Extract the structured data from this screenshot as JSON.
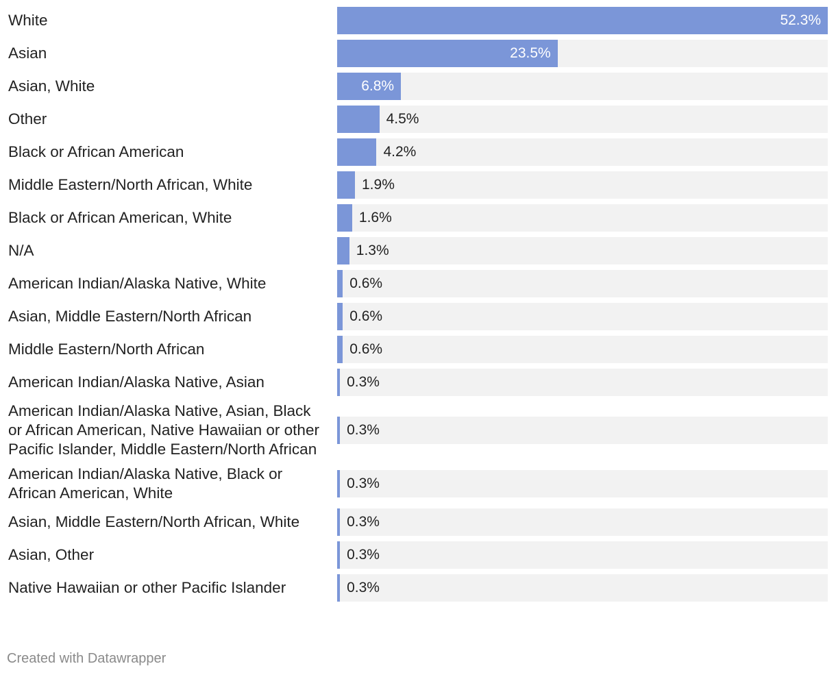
{
  "chart_data": {
    "type": "bar",
    "orientation": "horizontal",
    "categories": [
      "White",
      "Asian",
      "Asian, White",
      "Other",
      "Black or African American",
      "Middle Eastern/North African, White",
      "Black or African American, White",
      "N/A",
      "American Indian/Alaska Native, White",
      "Asian, Middle Eastern/North African",
      "Middle Eastern/North African",
      "American Indian/Alaska Native, Asian",
      "American Indian/Alaska Native, Asian, Black or African American, Native Hawaiian or other Pacific Islander, Middle Eastern/North African",
      "American Indian/Alaska Native, Black or African American, White",
      "Asian, Middle Eastern/North African, White",
      "Asian, Other",
      "Native Hawaiian or other Pacific Islander"
    ],
    "values": [
      52.3,
      23.5,
      6.8,
      4.5,
      4.2,
      1.9,
      1.6,
      1.3,
      0.6,
      0.6,
      0.6,
      0.3,
      0.3,
      0.3,
      0.3,
      0.3,
      0.3
    ],
    "value_labels": [
      "52.3%",
      "23.5%",
      "6.8%",
      "4.5%",
      "4.2%",
      "1.9%",
      "1.6%",
      "1.3%",
      "0.6%",
      "0.6%",
      "0.6%",
      "0.3%",
      "0.3%",
      "0.3%",
      "0.3%",
      "0.3%",
      "0.3%"
    ],
    "xlim": [
      0,
      52.3
    ],
    "grid": false,
    "bar_color": "#7b96d8",
    "track_color": "#f2f2f2"
  },
  "footer": {
    "credit": "Created with Datawrapper"
  }
}
